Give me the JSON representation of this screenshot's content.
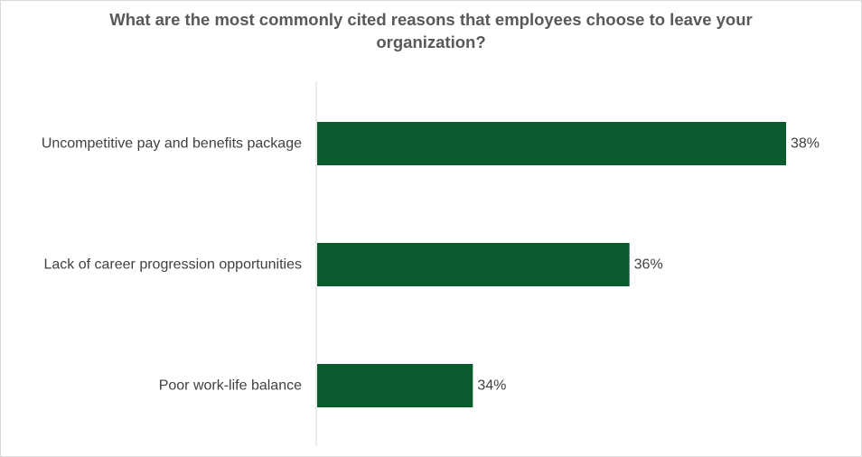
{
  "chart_data": {
    "type": "bar",
    "orientation": "horizontal",
    "title_lines": [
      "What are the most commonly cited reasons that employees choose to leave your",
      "organization?"
    ],
    "categories": [
      "Uncompetitive pay and benefits package",
      "Lack of career progression opportunities",
      "Poor work-life balance"
    ],
    "values": [
      38,
      36,
      34
    ],
    "value_labels": [
      "38%",
      "36%",
      "34%"
    ],
    "xlim": [
      32,
      38.9
    ],
    "bar_color": "#0a5b2d",
    "axis_color": "#d9d9d9",
    "grid": false,
    "legend": "none"
  }
}
